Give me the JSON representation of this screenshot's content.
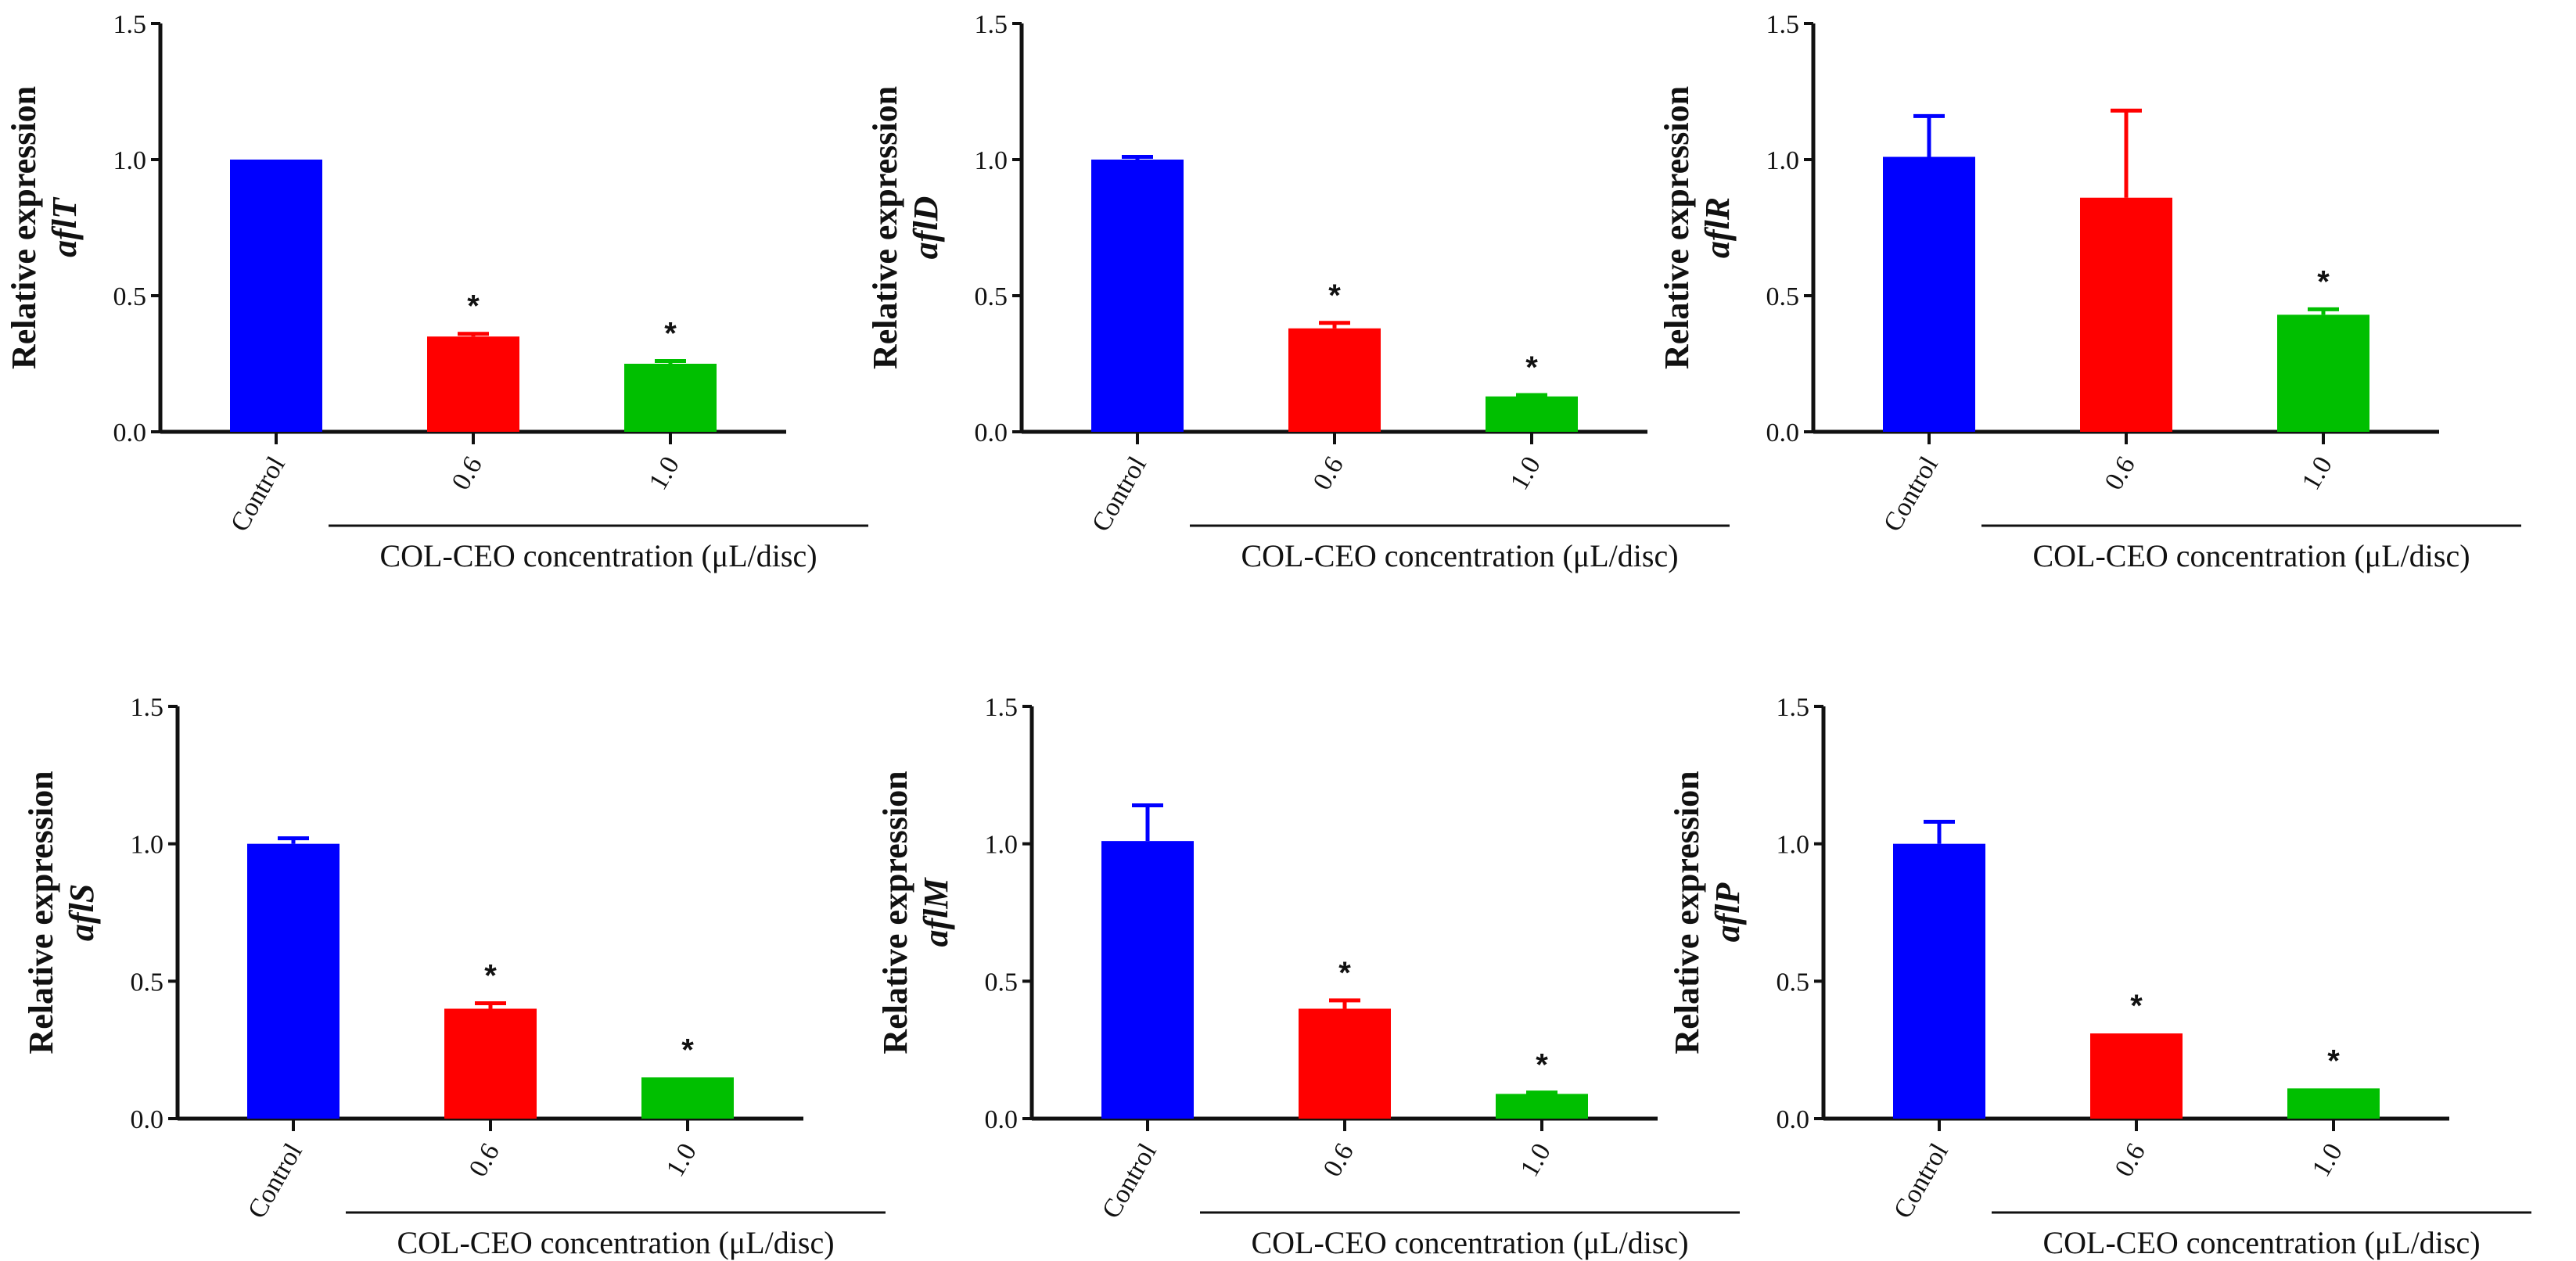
{
  "colors": {
    "control": "#0000FF",
    "c06": "#FF0000",
    "c10": "#00BF00",
    "axis": "#111111"
  },
  "chart_data": [
    {
      "type": "bar",
      "ylabel": "Relative expression",
      "gene": "aflT",
      "categories": [
        "Control",
        "0.6",
        "1.0"
      ],
      "values": [
        1.0,
        0.35,
        0.25
      ],
      "errors": [
        0.0,
        0.01,
        0.01
      ],
      "significance": [
        "",
        "*",
        "*"
      ],
      "xlabel": "COL-CEO concentration (μL/disc)",
      "ylim": [
        0,
        1.5
      ],
      "yticks": [
        "0.0",
        "0.5",
        "1.0",
        "1.5"
      ]
    },
    {
      "type": "bar",
      "ylabel": "Relative expression",
      "gene": "aflD",
      "categories": [
        "Control",
        "0.6",
        "1.0"
      ],
      "values": [
        1.0,
        0.38,
        0.13
      ],
      "errors": [
        0.01,
        0.02,
        0.005
      ],
      "significance": [
        "",
        "*",
        "*"
      ],
      "xlabel": "COL-CEO concentration (μL/disc)",
      "ylim": [
        0,
        1.5
      ],
      "yticks": [
        "0.0",
        "0.5",
        "1.0",
        "1.5"
      ]
    },
    {
      "type": "bar",
      "ylabel": "Relative expression",
      "gene": "aflR",
      "categories": [
        "Control",
        "0.6",
        "1.0"
      ],
      "values": [
        1.01,
        0.86,
        0.43
      ],
      "errors": [
        0.15,
        0.32,
        0.02
      ],
      "significance": [
        "",
        "",
        "*"
      ],
      "xlabel": "COL-CEO concentration (μL/disc)",
      "ylim": [
        0,
        1.5
      ],
      "yticks": [
        "0.0",
        "0.5",
        "1.0",
        "1.5"
      ]
    },
    {
      "type": "bar",
      "ylabel": "Relative expression",
      "gene": "aflS",
      "categories": [
        "Control",
        "0.6",
        "1.0"
      ],
      "values": [
        1.0,
        0.4,
        0.15
      ],
      "errors": [
        0.02,
        0.02,
        0.0
      ],
      "significance": [
        "",
        "*",
        "*"
      ],
      "xlabel": "COL-CEO concentration (μL/disc)",
      "ylim": [
        0,
        1.5
      ],
      "yticks": [
        "0.0",
        "0.5",
        "1.0",
        "1.5"
      ]
    },
    {
      "type": "bar",
      "ylabel": "Relative expression",
      "gene": "aflM",
      "categories": [
        "Control",
        "0.6",
        "1.0"
      ],
      "values": [
        1.01,
        0.4,
        0.09
      ],
      "errors": [
        0.13,
        0.03,
        0.005
      ],
      "significance": [
        "",
        "*",
        "*"
      ],
      "xlabel": "COL-CEO concentration (μL/disc)",
      "ylim": [
        0,
        1.5
      ],
      "yticks": [
        "0.0",
        "0.5",
        "1.0",
        "1.5"
      ]
    },
    {
      "type": "bar",
      "ylabel": "Relative expression",
      "gene": "aflP",
      "categories": [
        "Control",
        "0.6",
        "1.0"
      ],
      "values": [
        1.0,
        0.31,
        0.11
      ],
      "errors": [
        0.08,
        0.0,
        0.0
      ],
      "significance": [
        "",
        "*",
        "*"
      ],
      "xlabel": "COL-CEO concentration (μL/disc)",
      "ylim": [
        0,
        1.5
      ],
      "yticks": [
        "0.0",
        "0.5",
        "1.0",
        "1.5"
      ]
    }
  ]
}
